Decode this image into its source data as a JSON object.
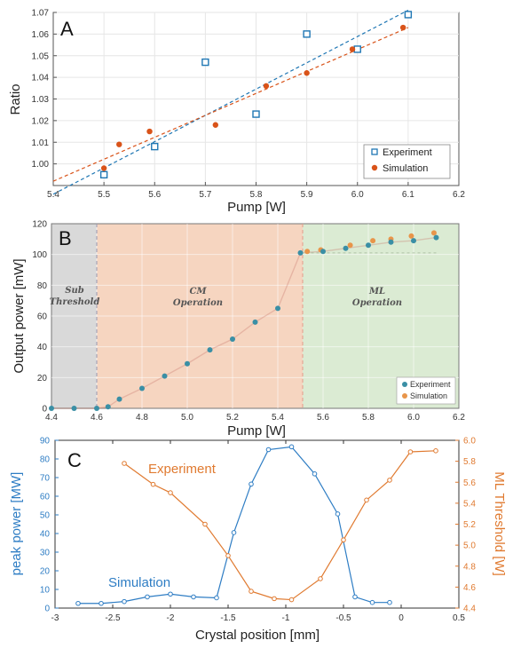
{
  "colors": {
    "experiment_blue": "#1f77b4",
    "simulation_orange": "#d95319",
    "c_blue": "#2e7dc4",
    "c_orange": "#e07a30",
    "b_exp_teal": "#3a8fa5",
    "b_sim_orange": "#e8954a",
    "sub_threshold_bg": "#d9d9d9",
    "cm_bg": "#f6d5c0",
    "ml_bg": "#dbebd3"
  },
  "chart_data": [
    {
      "panel": "A",
      "type": "scatter",
      "xlabel": "Pump [W]",
      "ylabel": "Ratio",
      "xlim": [
        5.4,
        6.2
      ],
      "ylim": [
        0.99,
        1.07
      ],
      "xticks": [
        "5.4",
        "5.5",
        "5.6",
        "5.7",
        "5.8",
        "5.9",
        "6.0",
        "6.1",
        "6.2"
      ],
      "yticks": [
        "1.00",
        "1.01",
        "1.02",
        "1.03",
        "1.04",
        "1.05",
        "1.06",
        "1.07"
      ],
      "grid": true,
      "legend_position": "bottom-right",
      "series": [
        {
          "name": "Experiment",
          "marker": "open-square",
          "x": [
            5.5,
            5.6,
            5.7,
            5.8,
            5.9,
            6.0,
            6.1
          ],
          "y": [
            0.995,
            1.008,
            1.047,
            1.023,
            1.06,
            1.053,
            1.069
          ],
          "fit_line": [
            [
              5.4,
              0.986
            ],
            [
              6.1,
              1.071
            ]
          ]
        },
        {
          "name": "Simulation",
          "marker": "filled-circle",
          "x": [
            5.5,
            5.53,
            5.59,
            5.72,
            5.82,
            5.9,
            5.99,
            6.09
          ],
          "y": [
            0.998,
            1.009,
            1.015,
            1.018,
            1.036,
            1.042,
            1.053,
            1.063
          ],
          "fit_line": [
            [
              5.4,
              0.992
            ],
            [
              6.1,
              1.063
            ]
          ]
        }
      ]
    },
    {
      "panel": "B",
      "type": "scatter",
      "xlabel": "Pump [W]",
      "ylabel": "Output power [mW]",
      "xlim": [
        4.4,
        6.2
      ],
      "ylim": [
        0,
        120
      ],
      "xticks": [
        "4.4",
        "4.6",
        "4.8",
        "5.0",
        "5.2",
        "5.4",
        "5.6",
        "5.8",
        "6.0",
        "6.2"
      ],
      "yticks": [
        "0",
        "20",
        "40",
        "60",
        "80",
        "100",
        "120"
      ],
      "grid": true,
      "legend_position": "bottom-right",
      "regions": [
        {
          "label_lines": [
            "Sub",
            "Threshold"
          ],
          "x_range": [
            4.4,
            4.6
          ]
        },
        {
          "label_lines": [
            "CM",
            "Operation"
          ],
          "x_range": [
            4.6,
            5.5
          ]
        },
        {
          "label_lines": [
            "ML",
            "Operation"
          ],
          "x_range": [
            5.5,
            6.2
          ]
        }
      ],
      "series": [
        {
          "name": "Experiment",
          "x": [
            4.4,
            4.5,
            4.6,
            4.65,
            4.7,
            4.8,
            4.9,
            5.0,
            5.1,
            5.2,
            5.3,
            5.4,
            5.5,
            5.6,
            5.7,
            5.8,
            5.9,
            6.0,
            6.1
          ],
          "y": [
            0,
            0,
            0,
            1,
            6,
            13,
            21,
            29,
            38,
            45,
            56,
            65,
            101,
            102,
            104,
            106,
            108,
            109,
            111
          ]
        },
        {
          "name": "Simulation",
          "x": [
            5.53,
            5.59,
            5.72,
            5.82,
            5.9,
            5.99,
            6.09
          ],
          "y": [
            102,
            103,
            106,
            109,
            110,
            112,
            114
          ]
        }
      ]
    },
    {
      "panel": "C",
      "type": "line",
      "xlabel": "Crystal position [mm]",
      "ylabel": "peak power [MW]",
      "ylabel_right": "ML Threshold [W]",
      "xlim": [
        -3,
        0.5
      ],
      "ylim": [
        0,
        90
      ],
      "ylim_right": [
        4.4,
        6.0
      ],
      "xticks": [
        "-3",
        "-2.5",
        "-2",
        "-1.5",
        "-1",
        "-0.5",
        "0",
        "0.5"
      ],
      "yticks": [
        "0",
        "10",
        "20",
        "30",
        "40",
        "50",
        "60",
        "70",
        "80",
        "90"
      ],
      "yticks_right": [
        "4.4",
        "4.6",
        "4.8",
        "5.0",
        "5.2",
        "5.4",
        "5.6",
        "5.8",
        "6.0"
      ],
      "grid": false,
      "series": [
        {
          "name": "Simulation",
          "axis": "left",
          "x": [
            -2.8,
            -2.6,
            -2.4,
            -2.2,
            -2.0,
            -1.8,
            -1.6,
            -1.45,
            -1.3,
            -1.15,
            -0.95,
            -0.75,
            -0.55,
            -0.4,
            -0.25,
            -0.1
          ],
          "y": [
            2.5,
            2.5,
            3.5,
            6,
            7.5,
            6,
            5.5,
            40.5,
            66.5,
            85,
            86.5,
            72,
            50.5,
            6,
            3,
            3
          ]
        },
        {
          "name": "Experiment",
          "axis": "right",
          "x": [
            -2.4,
            -2.15,
            -2.0,
            -1.7,
            -1.5,
            -1.3,
            -1.1,
            -0.95,
            -0.7,
            -0.5,
            -0.3,
            -0.1,
            0.08,
            0.3
          ],
          "y": [
            5.78,
            5.58,
            5.5,
            5.2,
            4.9,
            4.56,
            4.49,
            4.48,
            4.68,
            5.05,
            5.43,
            5.62,
            5.89,
            5.9
          ]
        }
      ]
    }
  ]
}
